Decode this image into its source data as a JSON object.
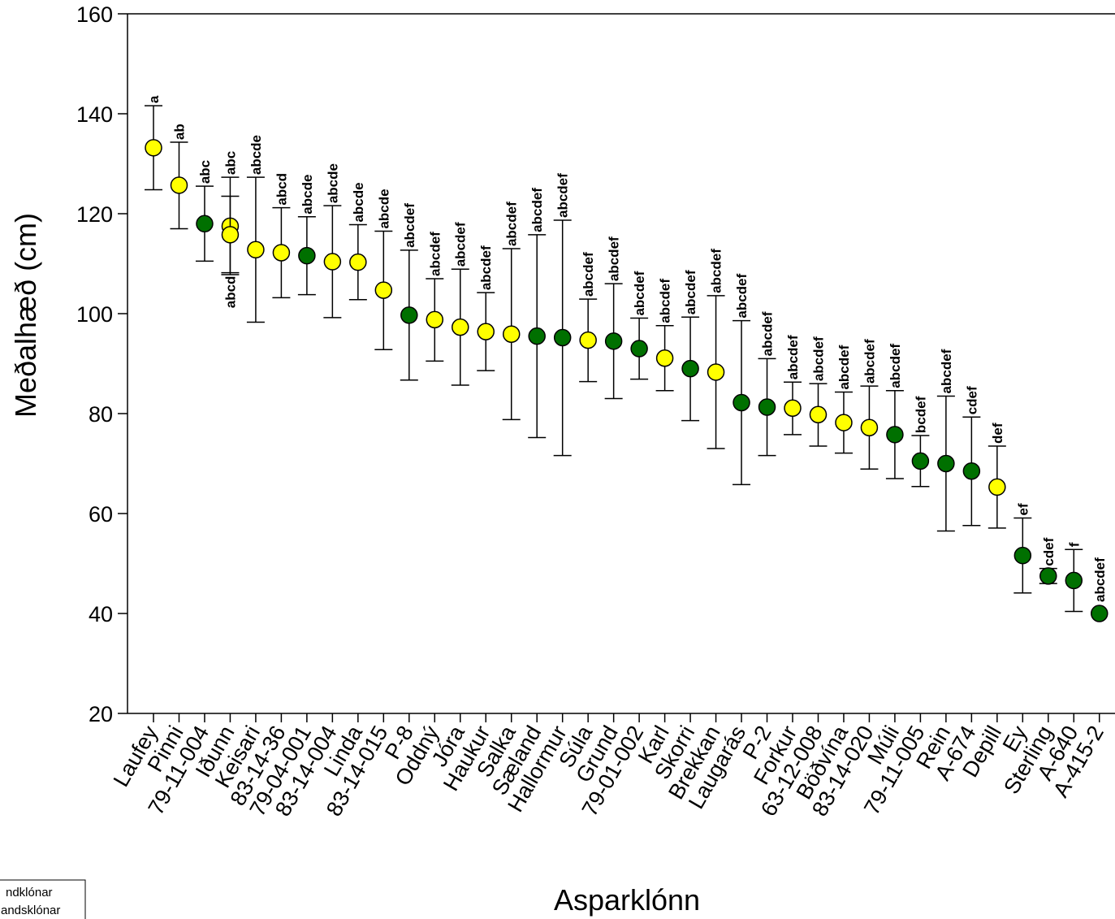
{
  "chart_data": {
    "type": "scatter",
    "xlabel": "Asparklónn",
    "ylabel": "Meðalhæð (cm)",
    "ylim": [
      20,
      160
    ],
    "yticks": [
      20,
      40,
      60,
      80,
      100,
      120,
      140,
      160
    ],
    "grid": false,
    "legend": {
      "placement": "bottom-left",
      "entries": [
        {
          "label": "ndklónar",
          "color": "#ffff00"
        },
        {
          "label": "andsklónar",
          "color": "#007000"
        }
      ]
    },
    "colors": {
      "yellow": "#ffff00",
      "green": "#007000"
    },
    "categories": [
      "Laufey",
      "Pinni",
      "79-11-004",
      "Iðunn",
      "Keisari",
      "83-14-36",
      "79-04-001",
      "83-14-004",
      "Linda",
      "83-14-015",
      "P-8",
      "Oddný",
      "Jóra",
      "Haukur",
      "Salka",
      "Sæland",
      "Hallormur",
      "Súla",
      "Grund",
      "79-01-002",
      "Karl",
      "Skorri",
      "Brekkan",
      "Laugarás",
      "P-2",
      "Forkur",
      "63-12-008",
      "Böðvína",
      "83-14-020",
      "Múli",
      "79-11-005",
      "Rein",
      "A-674",
      "Depill",
      "Ey",
      "Sterling",
      "A-640",
      "A-415-2"
    ],
    "points": [
      {
        "x": "Laufey",
        "y": 133.2,
        "lo": 124.8,
        "hi": 141.6,
        "group": "yellow",
        "label": "a"
      },
      {
        "x": "Pinni",
        "y": 125.7,
        "lo": 117.0,
        "hi": 134.3,
        "group": "yellow",
        "label": "ab"
      },
      {
        "x": "79-11-004",
        "y": 118.0,
        "lo": 110.5,
        "hi": 125.5,
        "group": "green",
        "label": "abc"
      },
      {
        "x": "Iðunn",
        "y": 117.5,
        "lo": 107.8,
        "hi": 127.3,
        "group": "yellow",
        "label": "abc"
      },
      {
        "x": "Iðunn",
        "y": 115.8,
        "lo": 108.2,
        "hi": 123.5,
        "group": "yellow",
        "label": "abcd",
        "label_below": true
      },
      {
        "x": "Keisari",
        "y": 112.8,
        "lo": 98.3,
        "hi": 127.3,
        "group": "yellow",
        "label": "abcde"
      },
      {
        "x": "83-14-36",
        "y": 112.2,
        "lo": 103.2,
        "hi": 121.2,
        "group": "yellow",
        "label": "abcd"
      },
      {
        "x": "79-04-001",
        "y": 111.6,
        "lo": 103.8,
        "hi": 119.4,
        "group": "green",
        "label": "abcde"
      },
      {
        "x": "83-14-004",
        "y": 110.4,
        "lo": 99.2,
        "hi": 121.6,
        "group": "yellow",
        "label": "abcde"
      },
      {
        "x": "Linda",
        "y": 110.3,
        "lo": 102.8,
        "hi": 117.8,
        "group": "yellow",
        "label": "abcde"
      },
      {
        "x": "83-14-015",
        "y": 104.7,
        "lo": 92.8,
        "hi": 116.5,
        "group": "yellow",
        "label": "abcde"
      },
      {
        "x": "P-8",
        "y": 99.7,
        "lo": 86.7,
        "hi": 112.7,
        "group": "green",
        "label": "abcdef"
      },
      {
        "x": "Oddný",
        "y": 98.8,
        "lo": 90.5,
        "hi": 107.0,
        "group": "yellow",
        "label": "abcdef"
      },
      {
        "x": "Jóra",
        "y": 97.3,
        "lo": 85.7,
        "hi": 108.9,
        "group": "yellow",
        "label": "abcdef"
      },
      {
        "x": "Haukur",
        "y": 96.4,
        "lo": 88.6,
        "hi": 104.2,
        "group": "yellow",
        "label": "abcdef"
      },
      {
        "x": "Salka",
        "y": 95.9,
        "lo": 78.8,
        "hi": 113.0,
        "group": "yellow",
        "label": "abcdef"
      },
      {
        "x": "Sæland",
        "y": 95.5,
        "lo": 75.2,
        "hi": 115.8,
        "group": "green",
        "label": "abcdef"
      },
      {
        "x": "Hallormur",
        "y": 95.2,
        "lo": 71.6,
        "hi": 118.7,
        "group": "green",
        "label": "abcdef"
      },
      {
        "x": "Súla",
        "y": 94.7,
        "lo": 86.4,
        "hi": 102.9,
        "group": "yellow",
        "label": "abcdef"
      },
      {
        "x": "Grund",
        "y": 94.5,
        "lo": 83.0,
        "hi": 106.0,
        "group": "green",
        "label": "abcdef"
      },
      {
        "x": "79-01-002",
        "y": 93.0,
        "lo": 86.9,
        "hi": 99.1,
        "group": "green",
        "label": "abcdef"
      },
      {
        "x": "Karl",
        "y": 91.1,
        "lo": 84.6,
        "hi": 97.6,
        "group": "yellow",
        "label": "abcdef"
      },
      {
        "x": "Skorri",
        "y": 89.0,
        "lo": 78.6,
        "hi": 99.3,
        "group": "green",
        "label": "abcdef"
      },
      {
        "x": "Brekkan",
        "y": 88.3,
        "lo": 73.0,
        "hi": 103.6,
        "group": "yellow",
        "label": "abcdef"
      },
      {
        "x": "Laugarás",
        "y": 82.2,
        "lo": 65.8,
        "hi": 98.6,
        "group": "green",
        "label": "abcdef"
      },
      {
        "x": "P-2",
        "y": 81.3,
        "lo": 71.6,
        "hi": 91.0,
        "group": "green",
        "label": "abcdef"
      },
      {
        "x": "Forkur",
        "y": 81.1,
        "lo": 75.8,
        "hi": 86.3,
        "group": "yellow",
        "label": "abcdef"
      },
      {
        "x": "63-12-008",
        "y": 79.8,
        "lo": 73.5,
        "hi": 86.0,
        "group": "yellow",
        "label": "abcdef"
      },
      {
        "x": "Böðvína",
        "y": 78.2,
        "lo": 72.1,
        "hi": 84.3,
        "group": "yellow",
        "label": "abcdef"
      },
      {
        "x": "83-14-020",
        "y": 77.2,
        "lo": 68.9,
        "hi": 85.5,
        "group": "yellow",
        "label": "abcdef"
      },
      {
        "x": "Múli",
        "y": 75.8,
        "lo": 67.0,
        "hi": 84.6,
        "group": "green",
        "label": "abcdef"
      },
      {
        "x": "79-11-005",
        "y": 70.5,
        "lo": 65.4,
        "hi": 75.6,
        "group": "green",
        "label": "bcdef"
      },
      {
        "x": "Rein",
        "y": 70.0,
        "lo": 56.5,
        "hi": 83.5,
        "group": "green",
        "label": "abcdef"
      },
      {
        "x": "A-674",
        "y": 68.5,
        "lo": 57.6,
        "hi": 79.3,
        "group": "green",
        "label": "cdef"
      },
      {
        "x": "Depill",
        "y": 65.3,
        "lo": 57.1,
        "hi": 73.5,
        "group": "yellow",
        "label": "def"
      },
      {
        "x": "Ey",
        "y": 51.6,
        "lo": 44.1,
        "hi": 59.1,
        "group": "green",
        "label": "ef"
      },
      {
        "x": "Sterling",
        "y": 47.5,
        "lo": 46.0,
        "hi": 49.0,
        "group": "green",
        "label": "cdef"
      },
      {
        "x": "A-640",
        "y": 46.6,
        "lo": 40.4,
        "hi": 52.8,
        "group": "green",
        "label": "f"
      },
      {
        "x": "A-415-2",
        "y": 40.0,
        "lo": 40.0,
        "hi": 40.0,
        "group": "green",
        "label": "abcdef"
      }
    ]
  }
}
